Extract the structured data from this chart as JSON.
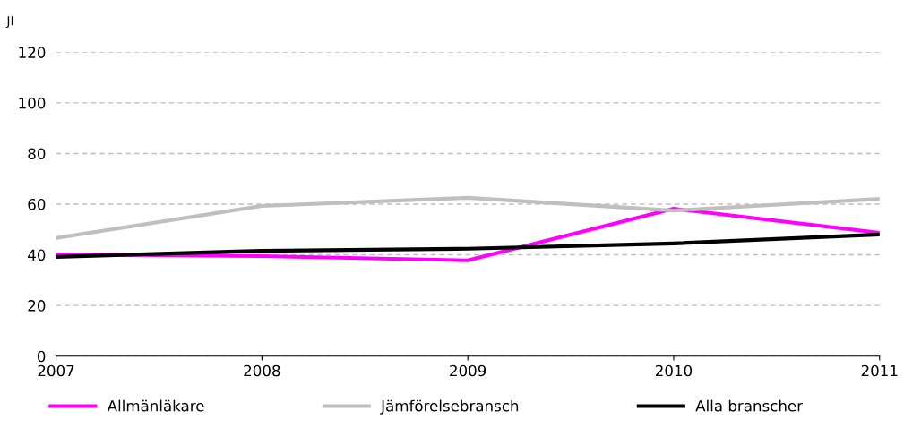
{
  "chart_data": {
    "type": "line",
    "ylabel": "JI",
    "x": [
      2007,
      2008,
      2009,
      2010,
      2011
    ],
    "series": [
      {
        "name": "Allmänläkare",
        "color": "#ff00ff",
        "values": [
          40.2,
          39.5,
          37.8,
          58.2,
          48.7
        ]
      },
      {
        "name": "Jämförelsebransch",
        "color": "#bfbfbf",
        "values": [
          46.6,
          59.3,
          62.5,
          57.5,
          62.1
        ]
      },
      {
        "name": "Alla branscher",
        "color": "#000000",
        "values": [
          39.2,
          41.6,
          42.4,
          44.5,
          48.0
        ]
      }
    ],
    "xlim": [
      2007,
      2011
    ],
    "xticks": [
      2007,
      2008,
      2009,
      2010,
      2011
    ],
    "ylim": [
      0,
      120
    ],
    "yticks": [
      0,
      20,
      40,
      60,
      80,
      100,
      120
    ],
    "grid": "y",
    "legend": "bottom",
    "marker": "none",
    "line_style": "solid"
  }
}
